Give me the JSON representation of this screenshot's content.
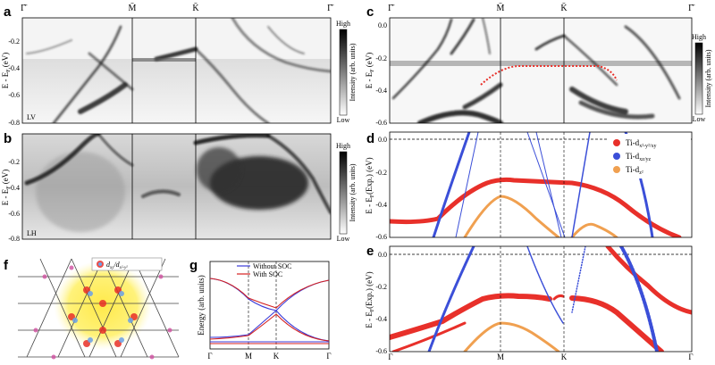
{
  "figure": {
    "panels": {
      "a": {
        "letter": "a",
        "top_labels": [
          "Γ̄",
          "M̄",
          "K̄",
          "Γ̄"
        ],
        "y_label": "E - E",
        "y_sub": "F",
        "y_unit": " (eV)",
        "y_ticks": [
          "-0.2",
          "-0.4",
          "-0.6",
          "-0.8"
        ],
        "polarization": "LV",
        "colorbar": {
          "high": "High",
          "low": "Low",
          "title": "Intensity (arb. units)"
        }
      },
      "b": {
        "letter": "b",
        "y_label": "E - E",
        "y_sub": "F",
        "y_unit": " (eV)",
        "y_ticks": [
          "-0.2",
          "-0.4",
          "-0.6",
          "-0.8"
        ],
        "polarization": "LH",
        "colorbar": {
          "high": "High",
          "low": "Low",
          "title": "Intensity (arb. units)"
        }
      },
      "c": {
        "letter": "c",
        "top_labels": [
          "Γ̄",
          "M̄",
          "K̄",
          "Γ̄"
        ],
        "y_label": "E - E",
        "y_sub": "F",
        "y_unit": " (eV)",
        "y_ticks": [
          "0.0",
          "-0.2",
          "-0.4",
          "-0.6"
        ],
        "colorbar": {
          "high": "High",
          "low": "Low",
          "title": "Intensity (arb. units)"
        }
      },
      "d": {
        "letter": "d",
        "y_label": "E - E",
        "y_sub": "F",
        "y_unit": "(Exp.) (eV)",
        "y_ticks": [
          "0.0",
          "-0.2",
          "-0.4",
          "-0.6"
        ],
        "legend": [
          {
            "base": "Ti-d",
            "sub": "x²-y²/xy",
            "color": "#e8302a"
          },
          {
            "base": "Ti-d",
            "sub": "xz/yz",
            "color": "#3b4fd8"
          },
          {
            "base": "Ti-d",
            "sub": "z²",
            "color": "#f0a050"
          }
        ]
      },
      "e": {
        "letter": "e",
        "y_label": "E - E",
        "y_sub": "F",
        "y_unit": "(Exp.) (eV)",
        "y_ticks": [
          "0.0",
          "-0.2",
          "-0.4",
          "-0.6"
        ],
        "x_labels": [
          "Γ",
          "M",
          "K",
          "Γ"
        ]
      },
      "f": {
        "letter": "f",
        "orbital_label": "d",
        "orbital_sub": "xy",
        "orbital_sep": "/d",
        "orbital_sub2": "x²-y²"
      },
      "g": {
        "letter": "g",
        "legend": [
          "Without SOC",
          "With SOC"
        ],
        "y_label": "Energy (arb. units)",
        "x_labels": [
          "Γ",
          "M",
          "K",
          "Γ"
        ]
      }
    },
    "colors": {
      "red": "#e8302a",
      "blue": "#3b4fd8",
      "orange": "#f0a050",
      "soc_blue": "#3b3bd8",
      "soc_red": "#d42020"
    }
  }
}
